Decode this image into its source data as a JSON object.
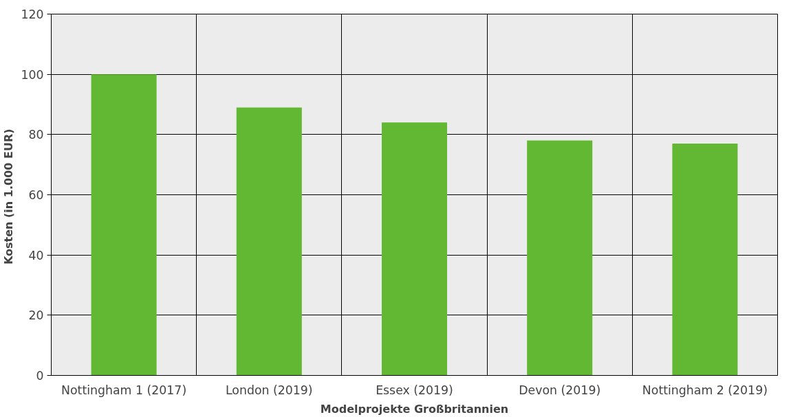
{
  "chart_data": {
    "type": "bar",
    "xlabel": "Modelprojekte Großbritannien",
    "ylabel": "Kosten (in 1.000  EUR)",
    "categories": [
      "Nottingham 1 (2017)",
      "London (2019)",
      "Essex (2019)",
      "Devon (2019)",
      "Nottingham 2 (2019)"
    ],
    "values": [
      100,
      89,
      84,
      78,
      77
    ],
    "color": "#62b832",
    "ylim": [
      0,
      120
    ],
    "yticks": [
      0,
      20,
      40,
      60,
      80,
      100,
      120
    ],
    "grid": true
  }
}
